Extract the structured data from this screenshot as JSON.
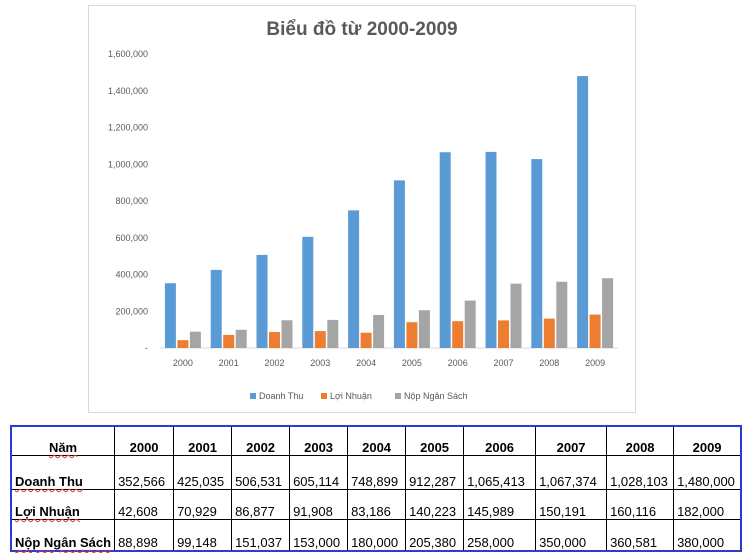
{
  "chart_data": {
    "type": "bar",
    "title": "Biểu đồ từ 2000-2009",
    "categories": [
      "2000",
      "2001",
      "2002",
      "2003",
      "2004",
      "2005",
      "2006",
      "2007",
      "2008",
      "2009"
    ],
    "series": [
      {
        "name": "Doanh Thu",
        "color": "#5b9bd5",
        "values": [
          352566,
          425035,
          506531,
          605114,
          748899,
          912287,
          1065413,
          1067374,
          1028103,
          1480000
        ]
      },
      {
        "name": "Lợi Nhuận",
        "color": "#ed7d31",
        "values": [
          42608,
          70929,
          86877,
          91908,
          83186,
          140223,
          145989,
          150191,
          160116,
          182000
        ]
      },
      {
        "name": "Nộp Ngân Sách",
        "color": "#a5a5a5",
        "values": [
          88898,
          99148,
          151037,
          153000,
          180000,
          205380,
          258000,
          350000,
          360581,
          380000
        ]
      }
    ],
    "ylim": [
      0,
      1600000
    ],
    "yticks": [
      "-",
      "200,000",
      "400,000",
      "600,000",
      "800,000",
      "1,000,000",
      "1,200,000",
      "1,400,000",
      "1,600,000"
    ],
    "legend": "bottom",
    "grid": false
  },
  "table": {
    "header": [
      "Năm",
      "2000",
      "2001",
      "2002",
      "2003",
      "2004",
      "2005",
      "2006",
      "2007",
      "2008",
      "2009"
    ],
    "rows": [
      [
        "Doanh Thu",
        "352,566",
        "425,035",
        "506,531",
        "605,114",
        "748,899",
        "912,287",
        "1,065,413",
        "1,067,374",
        "1,028,103",
        "1,480,000"
      ],
      [
        "Lợi Nhuận",
        "42,608",
        "70,929",
        "86,877",
        "91,908",
        "83,186",
        "140,223",
        "145,989",
        "150,191",
        "160,116",
        "182,000"
      ],
      [
        "Nộp Ngân Sách",
        "88,898",
        "99,148",
        "151,037",
        "153,000",
        "180,000",
        "205,380",
        "258,000",
        "350,000",
        "360,581",
        "380,000"
      ]
    ]
  }
}
